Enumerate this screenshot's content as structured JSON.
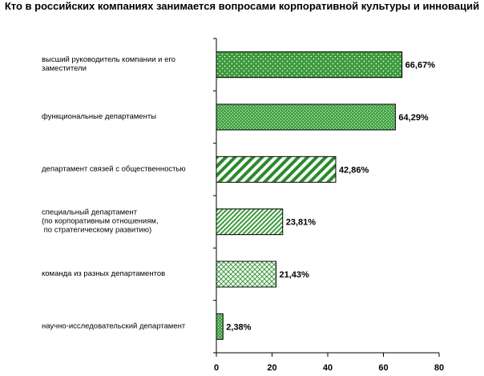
{
  "chart_data": {
    "type": "bar",
    "orientation": "horizontal",
    "title": "Кто в российских компаниях занимается вопросами корпоративной культуры и инноваций",
    "categories": [
      [
        "высший руководитель компании и его",
        "заместители"
      ],
      [
        "функциональные департаменты"
      ],
      [
        "департамент связей с общественностью"
      ],
      [
        "специальный департамент",
        "(по корпоративным  отношениям,",
        " по стратегическому развитию)"
      ],
      [
        "команда из разных департаментов"
      ],
      [
        "научно-исследовательский департамент"
      ]
    ],
    "values": [
      66.67,
      64.29,
      42.86,
      23.81,
      21.43,
      2.38
    ],
    "value_labels": [
      "66,67%",
      "64,29%",
      "42,86%",
      "23,81%",
      "21,43%",
      "2,38%"
    ],
    "xlim": [
      0,
      80
    ],
    "x_ticks": [
      "0",
      "20",
      "40",
      "60",
      "80"
    ],
    "grid": false,
    "bar_colors": [
      "#3d9a3d",
      "#4aa84a",
      "#2a8a2a",
      "#3d9a3d",
      "#4aa84a",
      "#3d9a3d"
    ],
    "bar_patterns": [
      "dots",
      "fine-dots",
      "diagonal-wide",
      "diagonal-narrow",
      "crosshatch",
      "fine-dots"
    ]
  }
}
